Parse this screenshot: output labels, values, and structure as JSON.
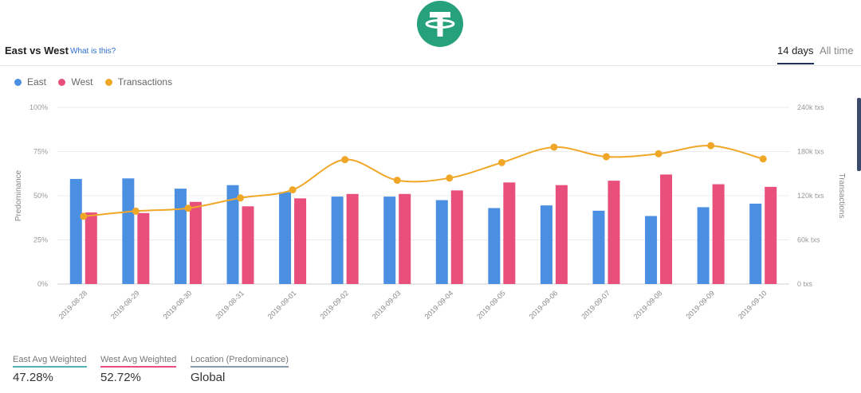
{
  "header": {
    "title": "East vs West",
    "what_link": "What is this?",
    "tabs": [
      {
        "label": "14 days",
        "active": true
      },
      {
        "label": "All time",
        "active": false
      }
    ]
  },
  "logo": {
    "icon": "tether-logo-icon",
    "color": "#26a17b"
  },
  "colors": {
    "east": "#4b8fe2",
    "west": "#e8507b",
    "transactions": "#f0a728"
  },
  "stats": [
    {
      "label": "East Avg Weighted",
      "value": "47.28%",
      "underline": "#4fb3b0"
    },
    {
      "label": "West Avg Weighted",
      "value": "52.72%",
      "underline": "#e8507b"
    },
    {
      "label": "Location (Predominance)",
      "value": "Global",
      "underline": "#8899aa"
    }
  ],
  "chart_data": {
    "type": "bar",
    "categories": [
      "2019-08-28",
      "2019-08-29",
      "2019-08-30",
      "2019-08-31",
      "2019-09-01",
      "2019-09-02",
      "2019-09-03",
      "2019-09-04",
      "2019-09-05",
      "2019-09-06",
      "2019-09-07",
      "2019-09-08",
      "2019-09-09",
      "2019-09-10"
    ],
    "series": [
      {
        "name": "East",
        "type": "bar",
        "axis": "left",
        "values": [
          59.5,
          59.8,
          54,
          56,
          52,
          49.5,
          49.5,
          47.5,
          43,
          44.5,
          41.5,
          38.5,
          43.5,
          45.5
        ]
      },
      {
        "name": "West",
        "type": "bar",
        "axis": "left",
        "values": [
          40.5,
          40.2,
          46.5,
          44,
          48.5,
          51,
          51,
          53,
          57.5,
          56,
          58.5,
          62,
          56.5,
          55
        ]
      },
      {
        "name": "Transactions",
        "type": "line",
        "axis": "right",
        "values": [
          92000,
          99000,
          103000,
          117000,
          128000,
          169000,
          141000,
          144000,
          165000,
          186000,
          173000,
          177000,
          188000,
          170000
        ]
      }
    ],
    "ylabel": "Predominance",
    "y2label": "Transactions",
    "yticks": [
      "0%",
      "25%",
      "50%",
      "75%",
      "100%"
    ],
    "y2ticks": [
      "0 txs",
      "60k txs",
      "120k txs",
      "180k txs",
      "240k txs"
    ],
    "ylim": [
      0,
      100
    ],
    "y2lim": [
      0,
      240000
    ],
    "grid": true,
    "legend_position": "top-left"
  }
}
